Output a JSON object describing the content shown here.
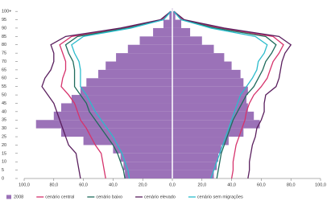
{
  "chart_data": {
    "type": "pyramid",
    "y": [
      0,
      5,
      10,
      15,
      20,
      25,
      30,
      35,
      40,
      45,
      50,
      55,
      60,
      65,
      70,
      75,
      80,
      85,
      90,
      95,
      100
    ],
    "ylim": [
      0,
      102
    ],
    "yticks": [
      0,
      5,
      10,
      15,
      20,
      25,
      30,
      35,
      40,
      45,
      50,
      55,
      60,
      65,
      70,
      75,
      80,
      85,
      90,
      95,
      {
        "value": 100,
        "label": "100+"
      }
    ],
    "xlim": [
      -100,
      100
    ],
    "xticks": [
      {
        "value": -100,
        "label": "100,0"
      },
      {
        "value": -80,
        "label": "80,0"
      },
      {
        "value": -60,
        "label": "60,0"
      },
      {
        "value": -40,
        "label": "40,0"
      },
      {
        "value": -20,
        "label": "20,0"
      },
      {
        "value": 0,
        "label": "0,0"
      },
      {
        "value": 20,
        "label": "20,0"
      },
      {
        "value": 40,
        "label": "40,0"
      },
      {
        "value": 60,
        "label": "60,0"
      },
      {
        "value": 80,
        "label": "80,0"
      },
      {
        "value": 100,
        "label": "100,0"
      }
    ],
    "series": [
      {
        "name": "2008",
        "style": "bars",
        "color": "#9b72b8",
        "left": [
          -32,
          -33,
          -35,
          -40,
          -60,
          -75,
          -92,
          -80,
          -75,
          -68,
          -62,
          -58,
          -50,
          -45,
          -38,
          -30,
          -22,
          -13,
          -6,
          -2,
          -0.5
        ],
        "right": [
          28,
          30,
          31,
          33,
          38,
          48,
          59,
          55,
          51,
          50,
          51,
          48,
          46,
          40,
          35,
          28,
          20,
          12,
          6,
          2,
          0.5
        ]
      },
      {
        "name": "cenário central",
        "style": "line",
        "color": "#d6336c",
        "left": [
          -45,
          -46,
          -47,
          -48,
          -52,
          -55,
          -58,
          -62,
          -64,
          -66,
          -70,
          -75,
          -74,
          -72,
          -72,
          -74,
          -76,
          -68,
          -32,
          -7,
          -1
        ],
        "right": [
          40,
          41,
          41,
          42,
          43,
          45,
          47,
          49,
          50,
          52,
          55,
          60,
          64,
          66,
          68,
          72,
          75,
          68,
          32,
          7,
          1
        ]
      },
      {
        "name": "cenário baixo",
        "style": "line",
        "color": "#1f6b5c",
        "left": [
          -32,
          -33,
          -35,
          -37,
          -40,
          -44,
          -48,
          -52,
          -56,
          -58,
          -62,
          -66,
          -66,
          -66,
          -67,
          -70,
          -72,
          -64,
          -30,
          -6,
          -1
        ],
        "right": [
          30,
          31,
          32,
          33,
          35,
          37,
          39,
          41,
          44,
          47,
          50,
          55,
          58,
          61,
          63,
          67,
          70,
          63,
          29,
          6,
          1
        ]
      },
      {
        "name": "cenário elevado",
        "style": "line",
        "color": "#5a1f5e",
        "left": [
          -62,
          -63,
          -64,
          -65,
          -70,
          -72,
          -74,
          -76,
          -78,
          -80,
          -84,
          -88,
          -86,
          -82,
          -80,
          -80,
          -82,
          -72,
          -35,
          -8,
          -1
        ],
        "right": [
          51,
          52,
          52,
          53,
          54,
          56,
          57,
          60,
          62,
          62,
          63,
          70,
          72,
          73,
          74,
          76,
          80,
          72,
          35,
          8,
          1
        ]
      },
      {
        "name": "cenário sem migrações",
        "style": "line",
        "color": "#2bbccc",
        "left": [
          -29,
          -30,
          -32,
          -34,
          -37,
          -40,
          -44,
          -48,
          -52,
          -55,
          -58,
          -62,
          -62,
          -62,
          -63,
          -66,
          -68,
          -60,
          -28,
          -6,
          -1
        ],
        "right": [
          26,
          28,
          30,
          32,
          34,
          36,
          38,
          40,
          42,
          44,
          46,
          50,
          54,
          57,
          58,
          62,
          64,
          56,
          26,
          6,
          1
        ]
      }
    ]
  }
}
